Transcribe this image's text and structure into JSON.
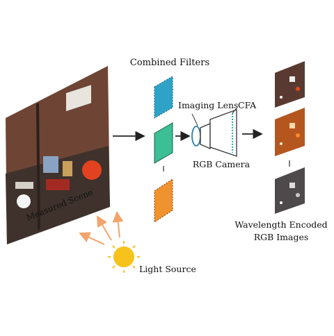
{
  "labels": {
    "combined_filters": "Combined Filters",
    "imaging_lens": "Imaging Lens",
    "cfa": "CFA",
    "rgb_camera": "RGB Camera",
    "measured_scene": "Measured Scene",
    "light_source": "Light Source",
    "wavelength_encoded_line1": "Wavelength Encoded",
    "wavelength_encoded_line2": "RGB Images"
  },
  "colors": {
    "filter_blue": "#2ea3c7",
    "filter_green": "#3dbf95",
    "filter_orange": "#f0922e",
    "sun": "#f7c21b",
    "ray": "#f2a46a",
    "arrow": "#222222",
    "scene_wall": "#6e4535",
    "scene_floor": "#4a3a33"
  },
  "icons": {
    "sun": "sun-icon",
    "camera": "camera-icon",
    "lens": "lens-icon"
  }
}
